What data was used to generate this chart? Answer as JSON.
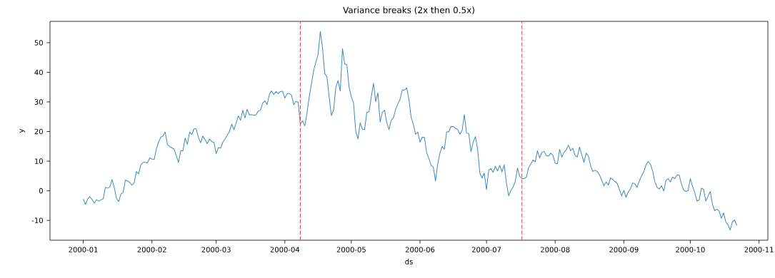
{
  "chart_data": {
    "type": "line",
    "title": "Variance breaks (2x then 0.5x)",
    "xlabel": "ds",
    "ylabel": "y",
    "xlim": [
      "1999-12-17",
      "2000-11-05"
    ],
    "ylim": [
      -16.7,
      57.2
    ],
    "xticks": [
      {
        "value": "2000-01",
        "label": "2000-01"
      },
      {
        "value": "2000-02",
        "label": "2000-02"
      },
      {
        "value": "2000-03",
        "label": "2000-03"
      },
      {
        "value": "2000-04",
        "label": "2000-04"
      },
      {
        "value": "2000-05",
        "label": "2000-05"
      },
      {
        "value": "2000-06",
        "label": "2000-06"
      },
      {
        "value": "2000-07",
        "label": "2000-07"
      },
      {
        "value": "2000-08",
        "label": "2000-08"
      },
      {
        "value": "2000-09",
        "label": "2000-09"
      },
      {
        "value": "2000-10",
        "label": "2000-10"
      },
      {
        "value": "2000-11",
        "label": "2000-11"
      }
    ],
    "yticks": [
      -10,
      0,
      10,
      20,
      30,
      40,
      50
    ],
    "ref_lines": [
      {
        "axis": "x",
        "value": "2000-04-08",
        "color": "#d1495b",
        "line_style": "dashed"
      },
      {
        "axis": "x",
        "value": "2000-07-17",
        "color": "#d1495b",
        "line_style": "dashed"
      }
    ],
    "series": [
      {
        "color": "#3a8ac0",
        "x": [
          "2000-01-01",
          "2000-01-02",
          "2000-01-03",
          "2000-01-04",
          "2000-01-05",
          "2000-01-06",
          "2000-01-07",
          "2000-01-08",
          "2000-01-10",
          "2000-01-11",
          "2000-01-12",
          "2000-01-13",
          "2000-01-14",
          "2000-01-15",
          "2000-01-16",
          "2000-01-17",
          "2000-01-18",
          "2000-01-19",
          "2000-01-20",
          "2000-01-21",
          "2000-01-22",
          "2000-01-23",
          "2000-01-24",
          "2000-01-25",
          "2000-01-26",
          "2000-01-27",
          "2000-01-28",
          "2000-01-29",
          "2000-01-30",
          "2000-01-31",
          "2000-02-01",
          "2000-02-02",
          "2000-02-03",
          "2000-02-04",
          "2000-02-05",
          "2000-02-06",
          "2000-02-07",
          "2000-02-08",
          "2000-02-09",
          "2000-02-11",
          "2000-02-13",
          "2000-02-14",
          "2000-02-15",
          "2000-02-16",
          "2000-02-17",
          "2000-02-18",
          "2000-02-19",
          "2000-02-20",
          "2000-02-21",
          "2000-02-22",
          "2000-02-23",
          "2000-02-24",
          "2000-02-26",
          "2000-02-27",
          "2000-02-28",
          "2000-02-29",
          "2000-03-01",
          "2000-03-02",
          "2000-03-03",
          "2000-03-04",
          "2000-03-05",
          "2000-03-07",
          "2000-03-08",
          "2000-03-09",
          "2000-03-10",
          "2000-03-11",
          "2000-03-12",
          "2000-03-13",
          "2000-03-14",
          "2000-03-15",
          "2000-03-16",
          "2000-03-17",
          "2000-03-18",
          "2000-03-19",
          "2000-03-20",
          "2000-03-21",
          "2000-03-22",
          "2000-03-23",
          "2000-03-24",
          "2000-03-25",
          "2000-03-26",
          "2000-03-27",
          "2000-03-28",
          "2000-03-29",
          "2000-03-30",
          "2000-03-31",
          "2000-04-01",
          "2000-04-02",
          "2000-04-03",
          "2000-04-04",
          "2000-04-05",
          "2000-04-06",
          "2000-04-07",
          "2000-04-08",
          "2000-04-09",
          "2000-04-10",
          "2000-04-11",
          "2000-04-12",
          "2000-04-13",
          "2000-04-14",
          "2000-04-15",
          "2000-04-16",
          "2000-04-17",
          "2000-04-18",
          "2000-04-19",
          "2000-04-20",
          "2000-04-21",
          "2000-04-22",
          "2000-04-23",
          "2000-04-24",
          "2000-04-25",
          "2000-04-26",
          "2000-04-27",
          "2000-04-28",
          "2000-04-29",
          "2000-04-30",
          "2000-05-01",
          "2000-05-02",
          "2000-05-03",
          "2000-05-04",
          "2000-05-05",
          "2000-05-06",
          "2000-05-07",
          "2000-05-08",
          "2000-05-09",
          "2000-05-10",
          "2000-05-11",
          "2000-05-12",
          "2000-05-13",
          "2000-05-14",
          "2000-05-15",
          "2000-05-16",
          "2000-05-17",
          "2000-05-18",
          "2000-05-19",
          "2000-05-20",
          "2000-05-21",
          "2000-05-22",
          "2000-05-23",
          "2000-05-24",
          "2000-05-25",
          "2000-05-26",
          "2000-05-27",
          "2000-05-28",
          "2000-05-29",
          "2000-05-30",
          "2000-05-31",
          "2000-06-01",
          "2000-06-02",
          "2000-06-03",
          "2000-06-04",
          "2000-06-05",
          "2000-06-06",
          "2000-06-07",
          "2000-06-08",
          "2000-06-09",
          "2000-06-10",
          "2000-06-11",
          "2000-06-12",
          "2000-06-13",
          "2000-06-14",
          "2000-06-15",
          "2000-06-16",
          "2000-06-17",
          "2000-06-18",
          "2000-06-19",
          "2000-06-20",
          "2000-06-21",
          "2000-06-22",
          "2000-06-23",
          "2000-06-24",
          "2000-06-25",
          "2000-06-26",
          "2000-06-27",
          "2000-06-28",
          "2000-06-29",
          "2000-06-30",
          "2000-07-01",
          "2000-07-02",
          "2000-07-03",
          "2000-07-04",
          "2000-07-05",
          "2000-07-06",
          "2000-07-07",
          "2000-07-08",
          "2000-07-09",
          "2000-07-10",
          "2000-07-11",
          "2000-07-12",
          "2000-07-13",
          "2000-07-14",
          "2000-07-15",
          "2000-07-16",
          "2000-07-17",
          "2000-07-18",
          "2000-07-19",
          "2000-07-20",
          "2000-07-21",
          "2000-07-22",
          "2000-07-23",
          "2000-07-24",
          "2000-07-25",
          "2000-07-26",
          "2000-07-27",
          "2000-07-28",
          "2000-07-29",
          "2000-07-30",
          "2000-07-31",
          "2000-08-01",
          "2000-08-02",
          "2000-08-03",
          "2000-08-04",
          "2000-08-05",
          "2000-08-06",
          "2000-08-07",
          "2000-08-08",
          "2000-08-09",
          "2000-08-10",
          "2000-08-11",
          "2000-08-12",
          "2000-08-13",
          "2000-08-14",
          "2000-08-15",
          "2000-08-16",
          "2000-08-17",
          "2000-08-18",
          "2000-08-19",
          "2000-08-20",
          "2000-08-21",
          "2000-08-22",
          "2000-08-23",
          "2000-08-24",
          "2000-08-25",
          "2000-08-26",
          "2000-08-27",
          "2000-08-28",
          "2000-08-29",
          "2000-08-31",
          "2000-09-01",
          "2000-09-02",
          "2000-09-03",
          "2000-09-04",
          "2000-09-05",
          "2000-09-06",
          "2000-09-07",
          "2000-09-08",
          "2000-09-09",
          "2000-09-10",
          "2000-09-11",
          "2000-09-12",
          "2000-09-13",
          "2000-09-14",
          "2000-09-15",
          "2000-09-16",
          "2000-09-17",
          "2000-09-18",
          "2000-09-19",
          "2000-09-20",
          "2000-09-21",
          "2000-09-22",
          "2000-09-23",
          "2000-09-24",
          "2000-09-25",
          "2000-09-26",
          "2000-09-27",
          "2000-09-28",
          "2000-09-29",
          "2000-09-30",
          "2000-10-01",
          "2000-10-02",
          "2000-10-03",
          "2000-10-04",
          "2000-10-05",
          "2000-10-06",
          "2000-10-07",
          "2000-10-08",
          "2000-10-09",
          "2000-10-10",
          "2000-10-11",
          "2000-10-12",
          "2000-10-13",
          "2000-10-14",
          "2000-10-15",
          "2000-10-16",
          "2000-10-17",
          "2000-10-18",
          "2000-10-19",
          "2000-10-20",
          "2000-10-21",
          "2000-10-22"
        ],
        "values": [
          -2.8,
          -4.6,
          -2.8,
          -2.0,
          -3.0,
          -4.2,
          -3.0,
          -3.5,
          -2.7,
          1.2,
          0.9,
          1.2,
          3.8,
          1.1,
          -2.6,
          -3.6,
          -1.1,
          -0.6,
          3.6,
          3.3,
          2.8,
          1.9,
          2.7,
          6.5,
          5.7,
          8.8,
          9.6,
          9.6,
          9.4,
          11.1,
          10.7,
          10.6,
          14.0,
          16.4,
          18.1,
          18.5,
          19.8,
          15.6,
          14.9,
          14.1,
          9.6,
          13.5,
          13.5,
          17.8,
          15.7,
          19.8,
          19.0,
          20.9,
          20.9,
          18.0,
          16.2,
          18.5,
          15.9,
          17.5,
          16.6,
          16.4,
          12.5,
          14.6,
          14.4,
          16.4,
          17.5,
          20.0,
          22.5,
          20.6,
          22.8,
          25.3,
          23.8,
          27.2,
          24.6,
          27.5,
          25.6,
          25.7,
          25.5,
          25.6,
          26.9,
          27.2,
          29.6,
          30.4,
          29.1,
          32.5,
          33.7,
          32.5,
          33.5,
          32.8,
          33.5,
          33.6,
          31.3,
          32.8,
          32.8,
          32.3,
          29.1,
          30.2,
          29.9,
          22.4,
          23.6,
          21.9,
          26.3,
          31.7,
          36.1,
          40.6,
          43.4,
          46.1,
          53.8,
          48.2,
          39.6,
          38.5,
          31.7,
          25.4,
          27.3,
          34.9,
          37.2,
          33.7,
          48.0,
          42.8,
          42.5,
          34.9,
          31.7,
          29.7,
          20.0,
          17.5,
          23.0,
          20.8,
          20.7,
          26.5,
          26.7,
          31.7,
          36.3,
          30.1,
          33.1,
          23.2,
          26.5,
          27.2,
          23.0,
          20.7,
          23.8,
          24.6,
          27.5,
          29.3,
          30.9,
          34.1,
          34.0,
          34.7,
          30.9,
          24.8,
          22.4,
          19.1,
          19.8,
          16.4,
          18.1,
          18.0,
          12.8,
          10.9,
          8.6,
          8.0,
          3.3,
          9.1,
          12.7,
          14.9,
          14.0,
          19.9,
          19.9,
          21.7,
          21.7,
          21.1,
          20.7,
          19.1,
          20.4,
          25.7,
          19.5,
          19.3,
          13.2,
          16.4,
          18.3,
          14.1,
          6.0,
          4.3,
          6.0,
          0.4,
          6.9,
          7.5,
          6.2,
          8.3,
          6.7,
          8.6,
          6.4,
          8.8,
          2.7,
          -1.7,
          0.1,
          1.2,
          3.1,
          7.7,
          4.9,
          4.1,
          4.1,
          4.6,
          7.8,
          9.0,
          10.4,
          9.8,
          13.5,
          11.1,
          13.0,
          13.3,
          11.9,
          11.7,
          12.7,
          12.0,
          9.3,
          9.1,
          14.0,
          11.4,
          13.0,
          13.8,
          15.4,
          13.5,
          14.4,
          11.9,
          11.4,
          14.8,
          12.2,
          9.6,
          12.7,
          11.7,
          8.5,
          6.5,
          7.0,
          6.5,
          5.4,
          3.6,
          1.7,
          3.0,
          1.9,
          4.3,
          3.8,
          3.1,
          2.5,
          -1.7,
          0.1,
          -2.2,
          -0.4,
          0.7,
          2.7,
          2.3,
          1.2,
          3.3,
          5.1,
          6.4,
          8.8,
          9.8,
          9.0,
          6.7,
          3.0,
          1.1,
          0.6,
          1.7,
          -0.1,
          3.5,
          4.1,
          3.0,
          4.6,
          4.1,
          5.3,
          5.3,
          2.3,
          0.2,
          -0.2,
          0.1,
          4.1,
          1.5,
          -0.6,
          -3.5,
          -3.1,
          0.9,
          0.4,
          -3.5,
          -1.8,
          -0.2,
          -4.6,
          -6.7,
          -6.2,
          -6.8,
          -9.3,
          -7.5,
          -10.5,
          -11.5,
          -13.3,
          -10.5,
          -9.9,
          -11.7
        ]
      }
    ]
  }
}
